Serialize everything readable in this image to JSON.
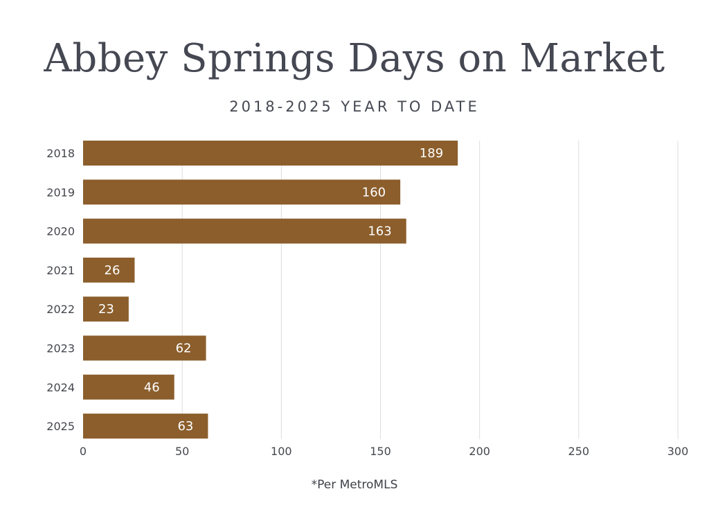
{
  "chart_data": {
    "type": "bar",
    "orientation": "horizontal",
    "title": "Abbey Springs Days on Market",
    "subtitle": "2018-2025 YEAR TO DATE",
    "categories": [
      "2018",
      "2019",
      "2020",
      "2021",
      "2022",
      "2023",
      "2024",
      "2025"
    ],
    "values": [
      189,
      160,
      163,
      26,
      23,
      62,
      46,
      63
    ],
    "xlim": [
      0,
      300
    ],
    "xticks": [
      0,
      50,
      100,
      150,
      200,
      250,
      300
    ],
    "grid": "vertical",
    "bar_color": "#8b5e2c",
    "data_labels": true,
    "footnote": "*Per MetroMLS"
  }
}
